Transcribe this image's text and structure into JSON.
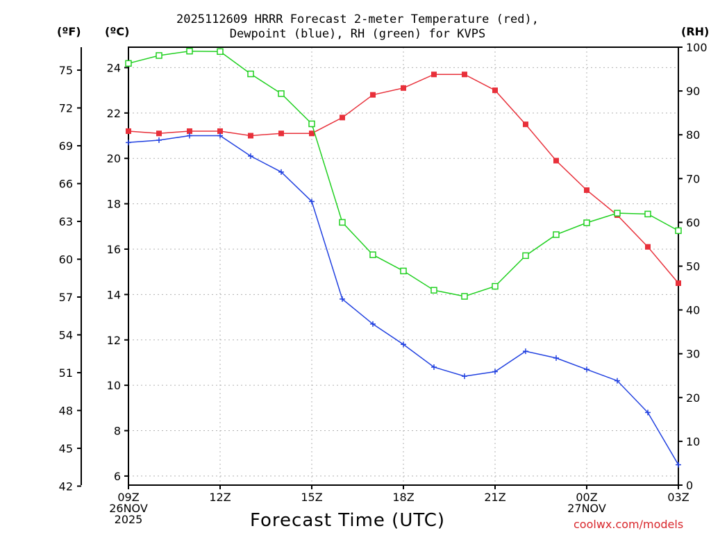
{
  "chart_data": {
    "type": "line",
    "title_line1": "2025112609 HRRR Forecast 2-meter Temperature (red),",
    "title_line2": "Dewpoint (blue), RH (green) for KVPS",
    "xlabel": "Forecast Time (UTC)",
    "credit": "coolwx.com/models",
    "units": {
      "fahrenheit": "(ºF)",
      "celsius": "(ºC)",
      "rh": "(RH)"
    },
    "x_hours": [
      0,
      1,
      2,
      3,
      4,
      5,
      6,
      7,
      8,
      9,
      10,
      11,
      12,
      13,
      14,
      15,
      16,
      17,
      18
    ],
    "x_ticks": [
      {
        "hour": 0,
        "lines": [
          "09Z",
          "26NOV",
          "2025"
        ]
      },
      {
        "hour": 3,
        "lines": [
          "12Z"
        ]
      },
      {
        "hour": 6,
        "lines": [
          "15Z"
        ]
      },
      {
        "hour": 9,
        "lines": [
          "18Z"
        ]
      },
      {
        "hour": 12,
        "lines": [
          "21Z"
        ]
      },
      {
        "hour": 15,
        "lines": [
          "00Z",
          "27NOV"
        ]
      },
      {
        "hour": 18,
        "lines": [
          "03Z"
        ]
      }
    ],
    "y_left_c": {
      "range": [
        5.6,
        24.9
      ],
      "ticks": [
        6,
        8,
        10,
        12,
        14,
        16,
        18,
        20,
        22,
        24
      ]
    },
    "y_left_f": {
      "ticks": [
        42,
        45,
        48,
        51,
        54,
        57,
        60,
        63,
        66,
        69,
        72,
        75
      ]
    },
    "y_right_rh": {
      "range": [
        0,
        100
      ],
      "ticks": [
        0,
        10,
        20,
        30,
        40,
        50,
        60,
        70,
        80,
        90,
        100
      ]
    },
    "grid": true,
    "series": [
      {
        "name": "Temperature",
        "axis": "celsius",
        "color": "#e8303a",
        "marker": "filled-square",
        "values": [
          21.2,
          21.1,
          21.2,
          21.2,
          21.0,
          21.1,
          21.1,
          21.8,
          22.8,
          23.1,
          23.7,
          23.7,
          23.0,
          21.5,
          19.9,
          18.6,
          17.5,
          16.1,
          14.5
        ]
      },
      {
        "name": "Dewpoint",
        "axis": "celsius",
        "color": "#2040e0",
        "marker": "plus",
        "values": [
          20.7,
          20.8,
          21.0,
          21.0,
          20.1,
          19.4,
          18.1,
          13.8,
          12.7,
          11.8,
          10.8,
          10.4,
          10.6,
          11.5,
          11.2,
          10.7,
          10.2,
          8.8,
          6.5
        ]
      },
      {
        "name": "RH",
        "axis": "rh",
        "color": "#20d020",
        "marker": "open-square",
        "values": [
          96.3,
          98.1,
          99.1,
          99.0,
          93.9,
          89.4,
          82.5,
          60.0,
          52.6,
          48.9,
          44.5,
          43.1,
          45.4,
          52.4,
          57.2,
          59.9,
          62.1,
          61.9,
          58.1
        ]
      }
    ]
  }
}
